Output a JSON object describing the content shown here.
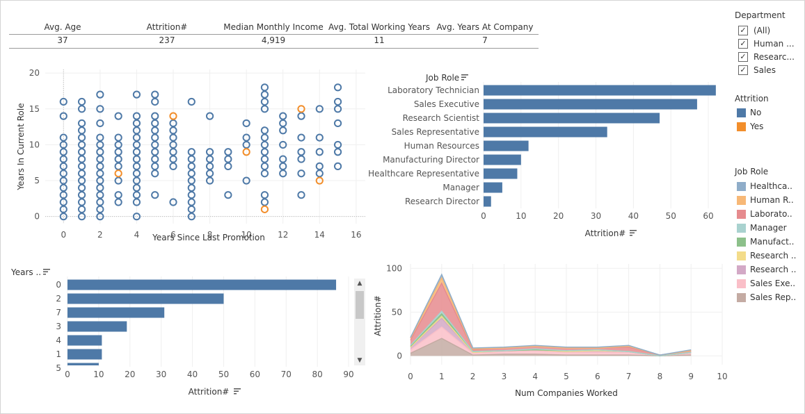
{
  "kpis": [
    {
      "label": "Avg. Age",
      "value": "37"
    },
    {
      "label": "Attrition#",
      "value": "237"
    },
    {
      "label": "Median Monthly Income",
      "value": "4,919"
    },
    {
      "label": "Avg. Total Working Years",
      "value": "11"
    },
    {
      "label": "Avg. Years At Company",
      "value": "7"
    }
  ],
  "filters": {
    "department": {
      "title": "Department",
      "items": [
        {
          "label": "(All)",
          "checked": true
        },
        {
          "label": "Human ...",
          "checked": true
        },
        {
          "label": "Researc...",
          "checked": true
        },
        {
          "label": "Sales",
          "checked": true
        }
      ]
    },
    "attrition_legend": {
      "title": "Attrition",
      "items": [
        {
          "label": "No",
          "color": "#4e79a7"
        },
        {
          "label": "Yes",
          "color": "#f28e2b"
        }
      ]
    },
    "jobrole_legend": {
      "title": "Job Role",
      "items": [
        {
          "label": "Healthca..",
          "color": "#8fadc9"
        },
        {
          "label": "Human R..",
          "color": "#f7b877"
        },
        {
          "label": "Laborato..",
          "color": "#e68b8e"
        },
        {
          "label": "Manager",
          "color": "#a9d2cf"
        },
        {
          "label": "Manufact..",
          "color": "#8cc08a"
        },
        {
          "label": "Research ..",
          "color": "#f3dc8a"
        },
        {
          "label": "Research ..",
          "color": "#d3a9c6"
        },
        {
          "label": "Sales Exe..",
          "color": "#fabfc8"
        },
        {
          "label": "Sales Rep..",
          "color": "#c4aba3"
        }
      ]
    }
  },
  "chart_data": [
    {
      "type": "scatter",
      "xlabel": "Years Since Last Promotion",
      "ylabel": "Years In Current Role",
      "xlim": [
        -1,
        16.5
      ],
      "ylim": [
        -1,
        20.5
      ],
      "xticks": [
        0,
        2,
        4,
        6,
        8,
        10,
        12,
        14,
        16
      ],
      "yticks": [
        0,
        5,
        10,
        15,
        20
      ],
      "series": [
        {
          "name": "No",
          "color": "#4e79a7",
          "points": [
            [
              0,
              0
            ],
            [
              0,
              1
            ],
            [
              0,
              2
            ],
            [
              0,
              3
            ],
            [
              0,
              4
            ],
            [
              0,
              5
            ],
            [
              0,
              6
            ],
            [
              0,
              7
            ],
            [
              0,
              8
            ],
            [
              0,
              9
            ],
            [
              0,
              10
            ],
            [
              0,
              11
            ],
            [
              0,
              14
            ],
            [
              0,
              16
            ],
            [
              1,
              0
            ],
            [
              1,
              1
            ],
            [
              1,
              2
            ],
            [
              1,
              3
            ],
            [
              1,
              4
            ],
            [
              1,
              5
            ],
            [
              1,
              6
            ],
            [
              1,
              7
            ],
            [
              1,
              8
            ],
            [
              1,
              9
            ],
            [
              1,
              10
            ],
            [
              1,
              11
            ],
            [
              1,
              12
            ],
            [
              1,
              13
            ],
            [
              1,
              15
            ],
            [
              1,
              16
            ],
            [
              2,
              0
            ],
            [
              2,
              1
            ],
            [
              2,
              2
            ],
            [
              2,
              3
            ],
            [
              2,
              4
            ],
            [
              2,
              5
            ],
            [
              2,
              6
            ],
            [
              2,
              7
            ],
            [
              2,
              8
            ],
            [
              2,
              9
            ],
            [
              2,
              10
            ],
            [
              2,
              11
            ],
            [
              2,
              13
            ],
            [
              2,
              15
            ],
            [
              2,
              17
            ],
            [
              3,
              2
            ],
            [
              3,
              3
            ],
            [
              3,
              5
            ],
            [
              3,
              7
            ],
            [
              3,
              8
            ],
            [
              3,
              9
            ],
            [
              3,
              10
            ],
            [
              3,
              11
            ],
            [
              3,
              14
            ],
            [
              4,
              0
            ],
            [
              4,
              2
            ],
            [
              4,
              3
            ],
            [
              4,
              4
            ],
            [
              4,
              5
            ],
            [
              4,
              6
            ],
            [
              4,
              7
            ],
            [
              4,
              8
            ],
            [
              4,
              9
            ],
            [
              4,
              10
            ],
            [
              4,
              11
            ],
            [
              4,
              12
            ],
            [
              4,
              13
            ],
            [
              4,
              14
            ],
            [
              4,
              17
            ],
            [
              5,
              3
            ],
            [
              5,
              6
            ],
            [
              5,
              7
            ],
            [
              5,
              8
            ],
            [
              5,
              9
            ],
            [
              5,
              10
            ],
            [
              5,
              11
            ],
            [
              5,
              12
            ],
            [
              5,
              13
            ],
            [
              5,
              14
            ],
            [
              5,
              16
            ],
            [
              5,
              17
            ],
            [
              6,
              2
            ],
            [
              6,
              7
            ],
            [
              6,
              8
            ],
            [
              6,
              9
            ],
            [
              6,
              10
            ],
            [
              6,
              11
            ],
            [
              6,
              12
            ],
            [
              6,
              13
            ],
            [
              7,
              0
            ],
            [
              7,
              1
            ],
            [
              7,
              2
            ],
            [
              7,
              3
            ],
            [
              7,
              4
            ],
            [
              7,
              5
            ],
            [
              7,
              6
            ],
            [
              7,
              7
            ],
            [
              7,
              8
            ],
            [
              7,
              9
            ],
            [
              7,
              16
            ],
            [
              8,
              5
            ],
            [
              8,
              6
            ],
            [
              8,
              7
            ],
            [
              8,
              8
            ],
            [
              8,
              9
            ],
            [
              8,
              14
            ],
            [
              9,
              3
            ],
            [
              9,
              7
            ],
            [
              9,
              8
            ],
            [
              9,
              9
            ],
            [
              10,
              5
            ],
            [
              10,
              10
            ],
            [
              10,
              11
            ],
            [
              10,
              13
            ],
            [
              11,
              2
            ],
            [
              11,
              3
            ],
            [
              11,
              6
            ],
            [
              11,
              7
            ],
            [
              11,
              8
            ],
            [
              11,
              9
            ],
            [
              11,
              10
            ],
            [
              11,
              11
            ],
            [
              11,
              12
            ],
            [
              11,
              15
            ],
            [
              11,
              16
            ],
            [
              11,
              17
            ],
            [
              11,
              18
            ],
            [
              12,
              6
            ],
            [
              12,
              7
            ],
            [
              12,
              8
            ],
            [
              12,
              10
            ],
            [
              12,
              12
            ],
            [
              12,
              13
            ],
            [
              12,
              14
            ],
            [
              13,
              3
            ],
            [
              13,
              6
            ],
            [
              13,
              8
            ],
            [
              13,
              9
            ],
            [
              13,
              11
            ],
            [
              13,
              14
            ],
            [
              14,
              6
            ],
            [
              14,
              7
            ],
            [
              14,
              9
            ],
            [
              14,
              11
            ],
            [
              14,
              15
            ],
            [
              15,
              7
            ],
            [
              15,
              9
            ],
            [
              15,
              10
            ],
            [
              15,
              13
            ],
            [
              15,
              15
            ],
            [
              15,
              16
            ],
            [
              15,
              18
            ]
          ]
        },
        {
          "name": "Yes",
          "color": "#f28e2b",
          "points": [
            [
              3,
              6
            ],
            [
              6,
              14
            ],
            [
              10,
              9
            ],
            [
              11,
              1
            ],
            [
              13,
              15
            ],
            [
              14,
              5
            ]
          ]
        }
      ]
    },
    {
      "type": "bar",
      "orientation": "horizontal",
      "dimension_label": "Job Role",
      "xlabel": "Attrition#",
      "xlim": [
        0,
        65
      ],
      "xticks": [
        0,
        10,
        20,
        30,
        40,
        50,
        60
      ],
      "categories": [
        "Laboratory Technician",
        "Sales Executive",
        "Research Scientist",
        "Sales Representative",
        "Human Resources",
        "Manufacturing Director",
        "Healthcare Representative",
        "Manager",
        "Research Director"
      ],
      "values": [
        62,
        57,
        47,
        33,
        12,
        10,
        9,
        5,
        2
      ],
      "color": "#4e79a7"
    },
    {
      "type": "bar",
      "orientation": "horizontal",
      "dimension_label": "Years ..",
      "xlabel": "Attrition#",
      "xlim": [
        0,
        92
      ],
      "xticks": [
        0,
        10,
        20,
        30,
        40,
        50,
        60,
        70,
        80,
        90
      ],
      "categories": [
        "0",
        "2",
        "7",
        "3",
        "4",
        "1",
        "5"
      ],
      "values": [
        86,
        50,
        31,
        19,
        11,
        11,
        10
      ],
      "color": "#4e79a7"
    },
    {
      "type": "area",
      "stacked": true,
      "xlabel": "Num Companies Worked",
      "ylabel": "Attrition#",
      "xlim": [
        0,
        10
      ],
      "ylim": [
        -10,
        105
      ],
      "xticks": [
        0,
        1,
        2,
        3,
        4,
        5,
        6,
        7,
        8,
        9,
        10
      ],
      "yticks": [
        0,
        50,
        100
      ],
      "x": [
        0,
        1,
        2,
        3,
        4,
        5,
        6,
        7,
        8,
        9
      ],
      "series": [
        {
          "name": "Sales Rep..",
          "color": "#c4aba3",
          "values": [
            3,
            20,
            1,
            2,
            2,
            1,
            1,
            1,
            0,
            1
          ]
        },
        {
          "name": "Sales Exe..",
          "color": "#fabfc8",
          "values": [
            4,
            13,
            2,
            3,
            4,
            3,
            3,
            3,
            0,
            2
          ]
        },
        {
          "name": "Research ..",
          "color": "#d3a9c6",
          "values": [
            3,
            10,
            1,
            1,
            1,
            1,
            2,
            1,
            0,
            1
          ]
        },
        {
          "name": "Research ..",
          "color": "#f3dc8a",
          "values": [
            0,
            2,
            0,
            0,
            0,
            0,
            0,
            0,
            0,
            0
          ]
        },
        {
          "name": "Manufact..",
          "color": "#8cc08a",
          "values": [
            1,
            3,
            1,
            0,
            0,
            1,
            1,
            0,
            0,
            0
          ]
        },
        {
          "name": "Manager",
          "color": "#a9d2cf",
          "values": [
            1,
            3,
            0,
            0,
            1,
            0,
            0,
            0,
            0,
            0
          ]
        },
        {
          "name": "Laborato..",
          "color": "#e68b8e",
          "values": [
            6,
            32,
            2,
            3,
            3,
            3,
            2,
            5,
            1,
            2
          ]
        },
        {
          "name": "Human R..",
          "color": "#f7b877",
          "values": [
            2,
            6,
            1,
            0,
            0,
            0,
            0,
            1,
            0,
            0
          ]
        },
        {
          "name": "Healthca..",
          "color": "#8fadc9",
          "values": [
            1,
            4,
            1,
            1,
            1,
            1,
            1,
            1,
            0,
            1
          ]
        }
      ]
    }
  ]
}
